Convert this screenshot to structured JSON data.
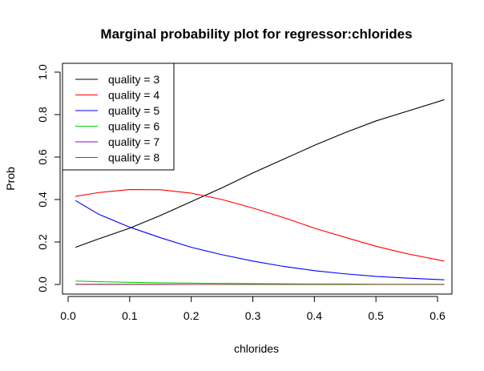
{
  "chart_data": {
    "type": "line",
    "title": "Marginal probability plot for regressor:chlorides",
    "xlabel": "chlorides",
    "ylabel": "Prob",
    "xlim": [
      0.0,
      0.6
    ],
    "ylim": [
      0.0,
      1.0
    ],
    "x_ticks": [
      "0.0",
      "0.1",
      "0.2",
      "0.3",
      "0.4",
      "0.5",
      "0.6"
    ],
    "y_ticks": [
      "0.0",
      "0.2",
      "0.4",
      "0.6",
      "0.8",
      "1.0"
    ],
    "grid": false,
    "legend_position": "top-left",
    "x": [
      0.012,
      0.05,
      0.1,
      0.15,
      0.2,
      0.25,
      0.3,
      0.35,
      0.4,
      0.45,
      0.5,
      0.55,
      0.611
    ],
    "series": [
      {
        "name": "quality = 3",
        "color": "#000000",
        "values": [
          0.175,
          0.215,
          0.265,
          0.325,
          0.39,
          0.455,
          0.525,
          0.59,
          0.655,
          0.715,
          0.77,
          0.815,
          0.87
        ]
      },
      {
        "name": "quality = 4",
        "color": "#ff0000",
        "values": [
          0.415,
          0.433,
          0.447,
          0.446,
          0.43,
          0.4,
          0.36,
          0.315,
          0.265,
          0.222,
          0.18,
          0.145,
          0.11
        ]
      },
      {
        "name": "quality = 5",
        "color": "#0000ff",
        "values": [
          0.395,
          0.33,
          0.27,
          0.22,
          0.175,
          0.14,
          0.11,
          0.085,
          0.065,
          0.05,
          0.038,
          0.03,
          0.022
        ]
      },
      {
        "name": "quality = 6",
        "color": "#00cc00",
        "values": [
          0.016,
          0.013,
          0.01,
          0.008,
          0.006,
          0.005,
          0.004,
          0.003,
          0.002,
          0.002,
          0.001,
          0.001,
          0.001
        ]
      },
      {
        "name": "quality = 7",
        "color": "#9900cc",
        "values": [
          0.001,
          0.001,
          0.001,
          0.001,
          0.0,
          0.0,
          0.0,
          0.0,
          0.0,
          0.0,
          0.0,
          0.0,
          0.0
        ]
      },
      {
        "name": "quality = 8",
        "color": "#8b4040",
        "values": [
          0.0,
          0.0,
          0.0,
          0.0,
          0.0,
          0.0,
          0.0,
          0.0,
          0.0,
          0.0,
          0.0,
          0.0,
          0.0
        ]
      }
    ]
  }
}
